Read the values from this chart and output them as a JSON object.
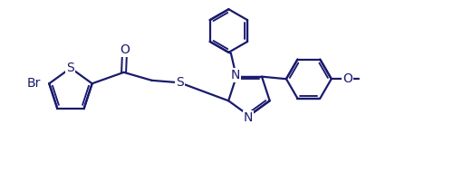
{
  "bg_color": "#ffffff",
  "line_color": "#1a1a6e",
  "line_width": 1.6,
  "font_size": 10,
  "figsize": [
    5.0,
    1.9
  ],
  "dpi": 100,
  "xlim": [
    0,
    10
  ],
  "ylim": [
    0,
    3.8
  ]
}
